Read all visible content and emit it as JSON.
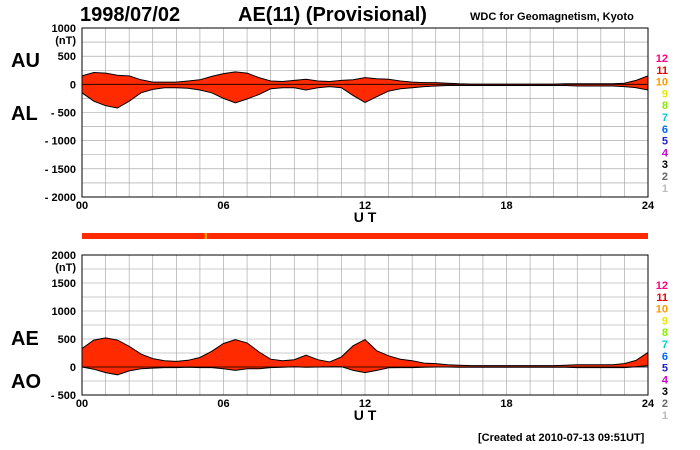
{
  "header": {
    "date": "1998/07/02",
    "title": "AE(11) (Provisional)",
    "organization": "WDC for Geomagnetism, Kyoto"
  },
  "footer": {
    "created": "[Created at 2010-07-13 09:51UT]"
  },
  "colors": {
    "fill": "#ff2a00",
    "station_bar": "#ff2a00",
    "axis": "#000000",
    "grid": "#9e9e9e"
  },
  "chart_data": [
    {
      "type": "area",
      "panel": "AU/AL",
      "panel_labels": [
        "AU",
        "AL"
      ],
      "unit_label": "(nT)",
      "xlabel": "U T",
      "x_ticks": [
        "00",
        "06",
        "12",
        "18",
        "24"
      ],
      "xlim": [
        0,
        24
      ],
      "ylim": [
        -2000,
        1000
      ],
      "y_ticks": [
        "1000",
        "500",
        "0",
        "- 500",
        "- 1000",
        "- 1500",
        "- 2000"
      ],
      "y_tick_values": [
        1000,
        500,
        0,
        -500,
        -1000,
        -1500,
        -2000
      ],
      "grid": true,
      "x": [
        0,
        0.5,
        1,
        1.5,
        2,
        2.5,
        3,
        3.5,
        4,
        4.5,
        5,
        5.5,
        6,
        6.5,
        7,
        7.5,
        8,
        8.5,
        9,
        9.5,
        10,
        10.5,
        11,
        11.5,
        12,
        12.5,
        13,
        13.5,
        14,
        14.5,
        15,
        15.5,
        16,
        16.5,
        17,
        17.5,
        18,
        18.5,
        19,
        19.5,
        20,
        20.5,
        21,
        21.5,
        22,
        22.5,
        23,
        23.5,
        24
      ],
      "series": [
        {
          "name": "AU",
          "values": [
            150,
            210,
            200,
            160,
            150,
            80,
            40,
            40,
            40,
            60,
            80,
            140,
            190,
            220,
            200,
            120,
            60,
            50,
            70,
            90,
            60,
            50,
            70,
            80,
            120,
            100,
            90,
            60,
            40,
            30,
            30,
            20,
            10,
            5,
            5,
            5,
            5,
            5,
            5,
            5,
            5,
            10,
            10,
            10,
            10,
            10,
            20,
            70,
            150
          ]
        },
        {
          "name": "AL",
          "values": [
            -150,
            -300,
            -380,
            -420,
            -300,
            -150,
            -90,
            -60,
            -60,
            -70,
            -100,
            -150,
            -250,
            -330,
            -260,
            -180,
            -80,
            -60,
            -60,
            -100,
            -60,
            -40,
            -60,
            -200,
            -320,
            -220,
            -120,
            -80,
            -60,
            -40,
            -30,
            -20,
            -20,
            -20,
            -20,
            -20,
            -20,
            -20,
            -20,
            -20,
            -20,
            -20,
            -30,
            -30,
            -30,
            -30,
            -40,
            -60,
            -100
          ]
        }
      ]
    },
    {
      "type": "area",
      "panel": "AE/AO",
      "panel_labels": [
        "AE",
        "AO"
      ],
      "unit_label": "(nT)",
      "xlabel": "U T",
      "x_ticks": [
        "00",
        "06",
        "12",
        "18",
        "24"
      ],
      "xlim": [
        0,
        24
      ],
      "ylim": [
        -500,
        2000
      ],
      "y_ticks": [
        "2000",
        "1500",
        "1000",
        "500",
        "0",
        "- 500"
      ],
      "y_tick_values": [
        2000,
        1500,
        1000,
        500,
        0,
        -500
      ],
      "grid": true,
      "x": [
        0,
        0.5,
        1,
        1.5,
        2,
        2.5,
        3,
        3.5,
        4,
        4.5,
        5,
        5.5,
        6,
        6.5,
        7,
        7.5,
        8,
        8.5,
        9,
        9.5,
        10,
        10.5,
        11,
        11.5,
        12,
        12.5,
        13,
        13.5,
        14,
        14.5,
        15,
        15.5,
        16,
        16.5,
        17,
        17.5,
        18,
        18.5,
        19,
        19.5,
        20,
        20.5,
        21,
        21.5,
        22,
        22.5,
        23,
        23.5,
        24
      ],
      "series": [
        {
          "name": "AE",
          "values": [
            330,
            480,
            520,
            480,
            370,
            230,
            150,
            110,
            100,
            120,
            170,
            280,
            420,
            490,
            430,
            270,
            140,
            110,
            130,
            210,
            130,
            90,
            180,
            380,
            490,
            290,
            200,
            140,
            110,
            70,
            60,
            40,
            30,
            25,
            25,
            25,
            25,
            25,
            25,
            25,
            25,
            30,
            40,
            40,
            40,
            40,
            60,
            120,
            260
          ]
        },
        {
          "name": "AO",
          "values": [
            0,
            -40,
            -100,
            -140,
            -70,
            -30,
            -20,
            -10,
            -10,
            -5,
            -10,
            -10,
            -30,
            -60,
            -30,
            -30,
            -10,
            -5,
            5,
            -5,
            0,
            5,
            5,
            -60,
            -100,
            -60,
            -15,
            -10,
            -10,
            -5,
            0,
            0,
            -5,
            -5,
            -5,
            -5,
            -5,
            -5,
            -5,
            -5,
            -5,
            -5,
            -10,
            -10,
            -10,
            -10,
            -10,
            5,
            25
          ]
        }
      ]
    }
  ],
  "station_count_legend": {
    "labels": [
      "12",
      "11",
      "10",
      "9",
      "8",
      "7",
      "6",
      "5",
      "4",
      "3",
      "2",
      "1"
    ],
    "colors": [
      "#ff0080",
      "#ee0000",
      "#ff9900",
      "#e6e600",
      "#88ee00",
      "#00cccc",
      "#0066ff",
      "#2222cc",
      "#cc00cc",
      "#000000",
      "#666666",
      "#bbbbbb"
    ]
  },
  "station_bar": {
    "count": "11",
    "low_count_hours": [
      5.2,
      5.3
    ]
  }
}
